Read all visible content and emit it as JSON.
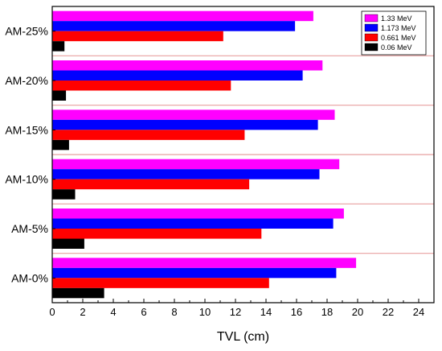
{
  "chart_data": {
    "type": "bar",
    "orientation": "horizontal",
    "title": "",
    "xlabel": "TVL (cm)",
    "ylabel": "",
    "xlim": [
      0,
      25
    ],
    "x_ticks": [
      0,
      2,
      4,
      6,
      8,
      10,
      12,
      14,
      16,
      18,
      20,
      22,
      24
    ],
    "categories": [
      "AM-25%",
      "AM-20%",
      "AM-15%",
      "AM-10%",
      "AM-5%",
      "AM-0%"
    ],
    "series": [
      {
        "name": "1.33 MeV",
        "color": "#ff00ff",
        "values": [
          17.1,
          17.7,
          18.5,
          18.8,
          19.1,
          19.9
        ]
      },
      {
        "name": "1.173 MeV",
        "color": "#0000ff",
        "values": [
          15.9,
          16.4,
          17.4,
          17.5,
          18.4,
          18.6
        ]
      },
      {
        "name": "0.661 MeV",
        "color": "#ff0000",
        "values": [
          11.2,
          11.7,
          12.6,
          12.9,
          13.7,
          14.2
        ]
      },
      {
        "name": "0.06 MeV",
        "color": "#000000",
        "values": [
          0.8,
          0.9,
          1.1,
          1.5,
          2.1,
          3.4
        ]
      }
    ],
    "separator_color": "#e8a0a0",
    "legend_position": "top-right",
    "grid": false
  }
}
